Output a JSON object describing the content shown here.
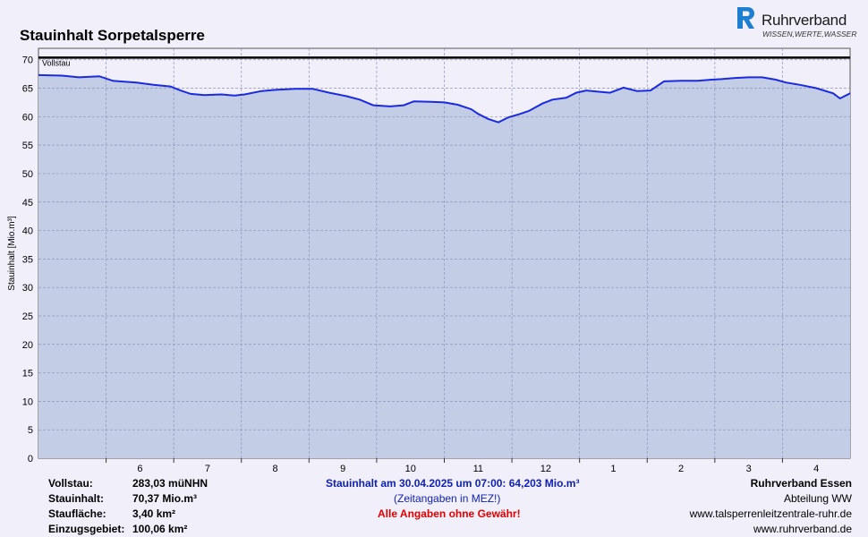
{
  "header": {
    "title": "Stauinhalt Sorpetalsperre",
    "logo_name": "Ruhrverband",
    "logo_tagline": "WISSEN,WERTE,WASSER"
  },
  "colors": {
    "background": "#f1eff9",
    "plot_background": "#f1eff9",
    "area_fill": "#c3cde6",
    "line": "#1a2be0",
    "fullline": "#000000",
    "grid": "#8f94b8",
    "warning": "#e00000",
    "highlight": "#0d1fb4",
    "logo_blue": "#1e7fd0"
  },
  "chart_data": {
    "type": "area",
    "title": "Stauinhalt Sorpetalsperre",
    "ylabel": "Stauinhalt [Mio.m³]",
    "xlabel": "",
    "ylim": [
      0,
      72
    ],
    "yticks": [
      "0",
      "5",
      "10",
      "15",
      "20",
      "25",
      "30",
      "35",
      "40",
      "45",
      "50",
      "55",
      "60",
      "65",
      "70"
    ],
    "xlim_months": [
      4.0,
      16.0
    ],
    "xticks": [
      "6",
      "7",
      "8",
      "9",
      "10",
      "11",
      "12",
      "1",
      "2",
      "3",
      "4"
    ],
    "xtick_pos": [
      5.5,
      6.5,
      7.5,
      8.5,
      9.5,
      10.5,
      11.5,
      12.5,
      13.5,
      14.5,
      15.5
    ],
    "grid": true,
    "reference_line": {
      "label": "Vollstau",
      "value": 70.37
    },
    "series": [
      {
        "x": [
          4.0,
          4.35,
          4.6,
          4.9,
          5.1,
          5.45,
          5.7,
          5.95,
          6.1,
          6.25,
          6.45,
          6.7,
          6.9,
          7.05,
          7.3,
          7.5,
          7.8,
          8.05,
          8.3,
          8.55,
          8.75,
          8.95,
          9.2,
          9.4,
          9.55,
          9.8,
          10.0,
          10.2,
          10.4,
          10.5,
          10.65,
          10.8,
          10.95,
          11.1,
          11.25,
          11.45,
          11.6,
          11.8,
          11.95,
          12.1,
          12.25,
          12.45,
          12.65,
          12.85,
          13.05,
          13.25,
          13.5,
          13.75,
          13.95,
          14.1,
          14.3,
          14.5,
          14.7,
          14.9,
          15.05,
          15.25,
          15.5,
          15.75,
          15.85,
          16.0
        ],
        "values": [
          67.3,
          67.2,
          66.9,
          67.1,
          66.3,
          66.0,
          65.6,
          65.3,
          64.6,
          64.0,
          63.8,
          63.9,
          63.7,
          63.9,
          64.5,
          64.7,
          64.9,
          64.9,
          64.2,
          63.6,
          63.0,
          62.0,
          61.8,
          62.0,
          62.7,
          62.6,
          62.5,
          62.1,
          61.3,
          60.5,
          59.6,
          59.0,
          59.9,
          60.4,
          61.0,
          62.3,
          63.0,
          63.3,
          64.2,
          64.6,
          64.4,
          64.2,
          65.1,
          64.5,
          64.6,
          66.2,
          66.3,
          66.3,
          66.5,
          66.6,
          66.8,
          66.9,
          66.9,
          66.5,
          66.0,
          65.6,
          65.0,
          64.1,
          63.2,
          64.1
        ]
      }
    ]
  },
  "footer": {
    "left": [
      {
        "label": "Vollstau:",
        "value": "283,03 müNHN"
      },
      {
        "label": "Stauinhalt:",
        "value": "70,37 Mio.m³"
      },
      {
        "label": "Staufläche:",
        "value": "3,40 km²"
      },
      {
        "label": "Einzugsgebiet:",
        "value": "100,06 km²"
      }
    ],
    "center": {
      "current": "Stauinhalt am 30.04.2025 um 07:00:  64,203 Mio.m³",
      "note": "(Zeitangaben in MEZ!)",
      "warning": "Alle Angaben ohne Gewähr!"
    },
    "right": [
      "Ruhrverband Essen",
      "Abteilung WW",
      "www.talsperrenleitzentrale-ruhr.de",
      "www.ruhrverband.de"
    ]
  }
}
